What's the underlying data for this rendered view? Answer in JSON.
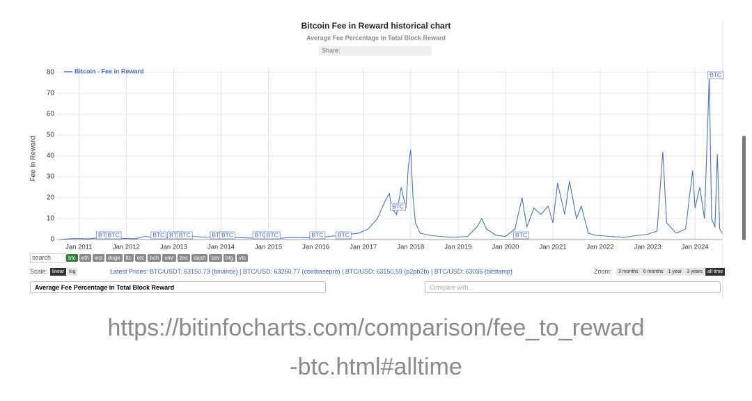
{
  "chart_data": {
    "type": "line",
    "title": "Bitcoin Fee in Reward historical chart",
    "subtitle": "Average Fee Percentage in Total Block Reward",
    "y_label": "Fee in Reward",
    "legend_position": "top-left",
    "grid": true,
    "xlim": [
      2010.54,
      2024.57
    ],
    "ylim": [
      0,
      82
    ],
    "xticks": [
      {
        "value": 2011,
        "label": "Jan 2011"
      },
      {
        "value": 2012,
        "label": "Jan 2012"
      },
      {
        "value": 2013,
        "label": "Jan 2013"
      },
      {
        "value": 2014,
        "label": "Jan 2014"
      },
      {
        "value": 2015,
        "label": "Jan 2015"
      },
      {
        "value": 2016,
        "label": "Jan 2016"
      },
      {
        "value": 2017,
        "label": "Jan 2017"
      },
      {
        "value": 2018,
        "label": "Jan 2018"
      },
      {
        "value": 2019,
        "label": "Jan 2019"
      },
      {
        "value": 2020,
        "label": "Jan 2020"
      },
      {
        "value": 2021,
        "label": "Jan 2021"
      },
      {
        "value": 2022,
        "label": "Jan 2022"
      },
      {
        "value": 2023,
        "label": "Jan 2023"
      },
      {
        "value": 2024,
        "label": "Jan 2024"
      }
    ],
    "yticks": [
      0,
      10,
      20,
      30,
      40,
      50,
      60,
      70,
      80
    ],
    "series": [
      {
        "name": "Bitcoin - Fee in Reward",
        "color": "#4a6fc7",
        "x": [
          2010.6,
          2010.9,
          2011.2,
          2011.5,
          2011.8,
          2012.0,
          2012.2,
          2012.4,
          2012.6,
          2012.9,
          2013.2,
          2013.4,
          2013.7,
          2013.9,
          2014.2,
          2014.5,
          2014.8,
          2015.2,
          2015.5,
          2015.8,
          2016.1,
          2016.3,
          2016.5,
          2016.7,
          2016.9,
          2017.1,
          2017.3,
          2017.45,
          2017.55,
          2017.6,
          2017.7,
          2017.8,
          2017.9,
          2017.95,
          2018.0,
          2018.05,
          2018.1,
          2018.2,
          2018.4,
          2018.6,
          2018.9,
          2019.2,
          2019.4,
          2019.5,
          2019.6,
          2019.8,
          2020.0,
          2020.2,
          2020.35,
          2020.45,
          2020.6,
          2020.75,
          2020.9,
          2021.0,
          2021.1,
          2021.25,
          2021.35,
          2021.5,
          2021.6,
          2021.75,
          2021.9,
          2022.2,
          2022.5,
          2022.8,
          2023.0,
          2023.2,
          2023.32,
          2023.4,
          2023.6,
          2023.8,
          2023.95,
          2024.0,
          2024.1,
          2024.2,
          2024.3,
          2024.35,
          2024.42,
          2024.47,
          2024.52,
          2024.57
        ],
        "values": [
          0,
          0.5,
          0.3,
          1,
          0.5,
          0.5,
          0.4,
          1.5,
          0.8,
          1,
          2,
          1.5,
          1,
          1.5,
          1,
          0.8,
          0.5,
          0.5,
          1,
          0.8,
          1,
          1.5,
          2,
          2.5,
          3,
          5,
          10,
          18,
          22,
          15,
          12,
          25,
          15,
          35,
          43,
          20,
          8,
          3,
          2,
          1.5,
          1,
          1.5,
          6,
          10,
          5,
          2,
          1.5,
          5,
          20,
          6,
          15,
          12,
          16,
          8,
          27,
          12,
          28,
          10,
          16,
          3,
          2,
          1.5,
          1,
          2,
          2.5,
          4,
          42,
          8,
          3,
          5,
          33,
          15,
          25,
          10,
          78,
          10,
          6,
          41,
          5,
          3
        ]
      }
    ],
    "flags": [
      {
        "x": 2011.4,
        "label": "BTC"
      },
      {
        "x": 2011.6,
        "label": "BTC"
      },
      {
        "x": 2012.55,
        "label": "BTC"
      },
      {
        "x": 2012.9,
        "label": "BTC"
      },
      {
        "x": 2013.1,
        "label": "BTC"
      },
      {
        "x": 2013.8,
        "label": "BTC"
      },
      {
        "x": 2014.0,
        "label": "BTC"
      },
      {
        "x": 2014.7,
        "label": "BTC"
      },
      {
        "x": 2014.95,
        "label": "BTC"
      },
      {
        "x": 2015.9,
        "label": "BTC"
      },
      {
        "x": 2016.45,
        "label": "BTC"
      },
      {
        "x": 2017.6,
        "label": "BTC"
      },
      {
        "x": 2020.2,
        "label": "BTC"
      },
      {
        "x": 2024.3,
        "label": "BTC"
      }
    ]
  },
  "page": {
    "share": "Share:",
    "search": "search",
    "coins": [
      "btc",
      "eth",
      "xrp",
      "doge",
      "ltc",
      "etc",
      "bch",
      "xmr",
      "zec",
      "dash",
      "bsv",
      "btg",
      "vtc"
    ],
    "scale_label": "Scale:",
    "scales": [
      "linear",
      "log"
    ],
    "prices": [
      "Latest Prices: BTC/USDT: 63150.73 (binance)",
      "BTC/USD: 63260.77 (coinbasepro)",
      "BTC/USD: 63150.59 (p2pb2b)",
      "BTC/USD: 63036 (bitstamp)"
    ],
    "zoom_label": "Zoom:",
    "zooms": [
      "3 months",
      "6 months",
      "1 year",
      "3 years",
      "all time"
    ],
    "metric_select": "Average Fee Percentage in Total Block Reward",
    "compare_select": "Compare with...",
    "url": [
      "https://bitinfocharts.com/comparison/fee_to_reward",
      "-btc.html#alltime"
    ]
  }
}
